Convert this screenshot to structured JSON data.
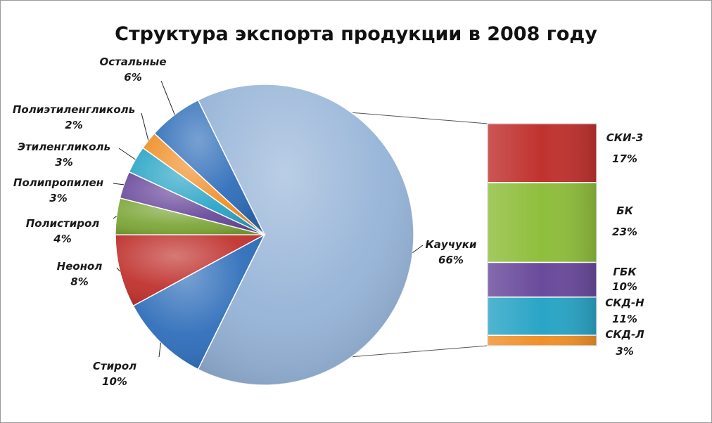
{
  "chart_data": {
    "type": "pie",
    "title": "Структура экспорта продукции в 2008 году",
    "slices": [
      {
        "name": "Каучуки",
        "value": 66,
        "label": "66%",
        "color": "#95b3d7"
      },
      {
        "name": "Стирол",
        "value": 10,
        "label": "10%",
        "color": "#2f6eba"
      },
      {
        "name": "Неонол",
        "value": 8,
        "label": "8%",
        "color": "#c0322e"
      },
      {
        "name": "Полистирол",
        "value": 4,
        "label": "4%",
        "color": "#7ea73a"
      },
      {
        "name": "Полипропилен",
        "value": 3,
        "label": "3%",
        "color": "#6a4a9c"
      },
      {
        "name": "Этиленгликоль",
        "value": 3,
        "label": "3%",
        "color": "#2aa5c6"
      },
      {
        "name": "Полиэтиленгликоль",
        "value": 2,
        "label": "2%",
        "color": "#f0902a"
      },
      {
        "name": "Остальные",
        "value": 6,
        "label": "6%",
        "color": "#2f6eba"
      }
    ],
    "breakdown": {
      "of": "Каучуки",
      "segments": [
        {
          "name": "СКИ-3",
          "value": 17,
          "label": "17%",
          "color": "#c0322e"
        },
        {
          "name": "БК",
          "value": 23,
          "label": "23%",
          "color": "#8fbe3c"
        },
        {
          "name": "ГБК",
          "value": 10,
          "label": "10%",
          "color": "#6a4a9c"
        },
        {
          "name": "СКД-Н",
          "value": 11,
          "label": "11%",
          "color": "#2aa5c6"
        },
        {
          "name": "СКД-Л",
          "value": 3,
          "label": "3%",
          "color": "#f0902a"
        }
      ]
    }
  }
}
